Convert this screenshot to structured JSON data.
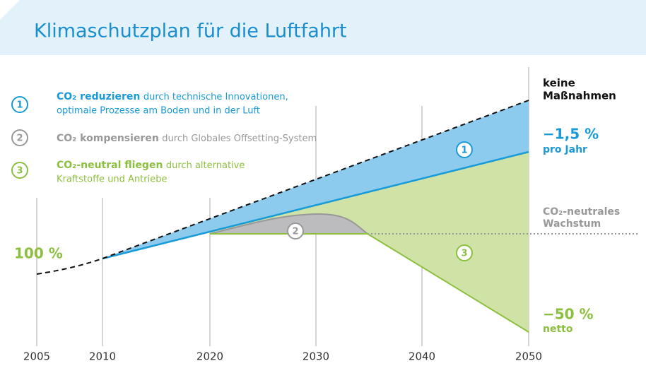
{
  "title": "Klimaschutzplan für die Luftfahrt",
  "legend": [
    {
      "number": "1",
      "bold": "CO₂ reduzieren",
      "text": "durch technische Innovationen,",
      "text2": "optimale Prozesse am Boden und in der Luft"
    },
    {
      "number": "2",
      "bold": "CO₂ kompensieren",
      "text": "durch Globales Offsetting-System"
    },
    {
      "number": "3",
      "bold": "CO₂-neutral fliegen",
      "text": "durch alternative",
      "text2": "Kraftstoffe und Antriebe"
    }
  ],
  "x_axis": [
    "2005",
    "2010",
    "2020",
    "2030",
    "2040",
    "2050"
  ],
  "annotations": {
    "start": "100 %",
    "no_measures": [
      "keine",
      "Maßnahmen"
    ],
    "reduction": [
      "−1,5 %",
      "pro Jahr"
    ],
    "neutral_growth": [
      "CO₂-neutrales",
      "Wachstum"
    ],
    "net": [
      "−50 %",
      "netto"
    ]
  }
}
